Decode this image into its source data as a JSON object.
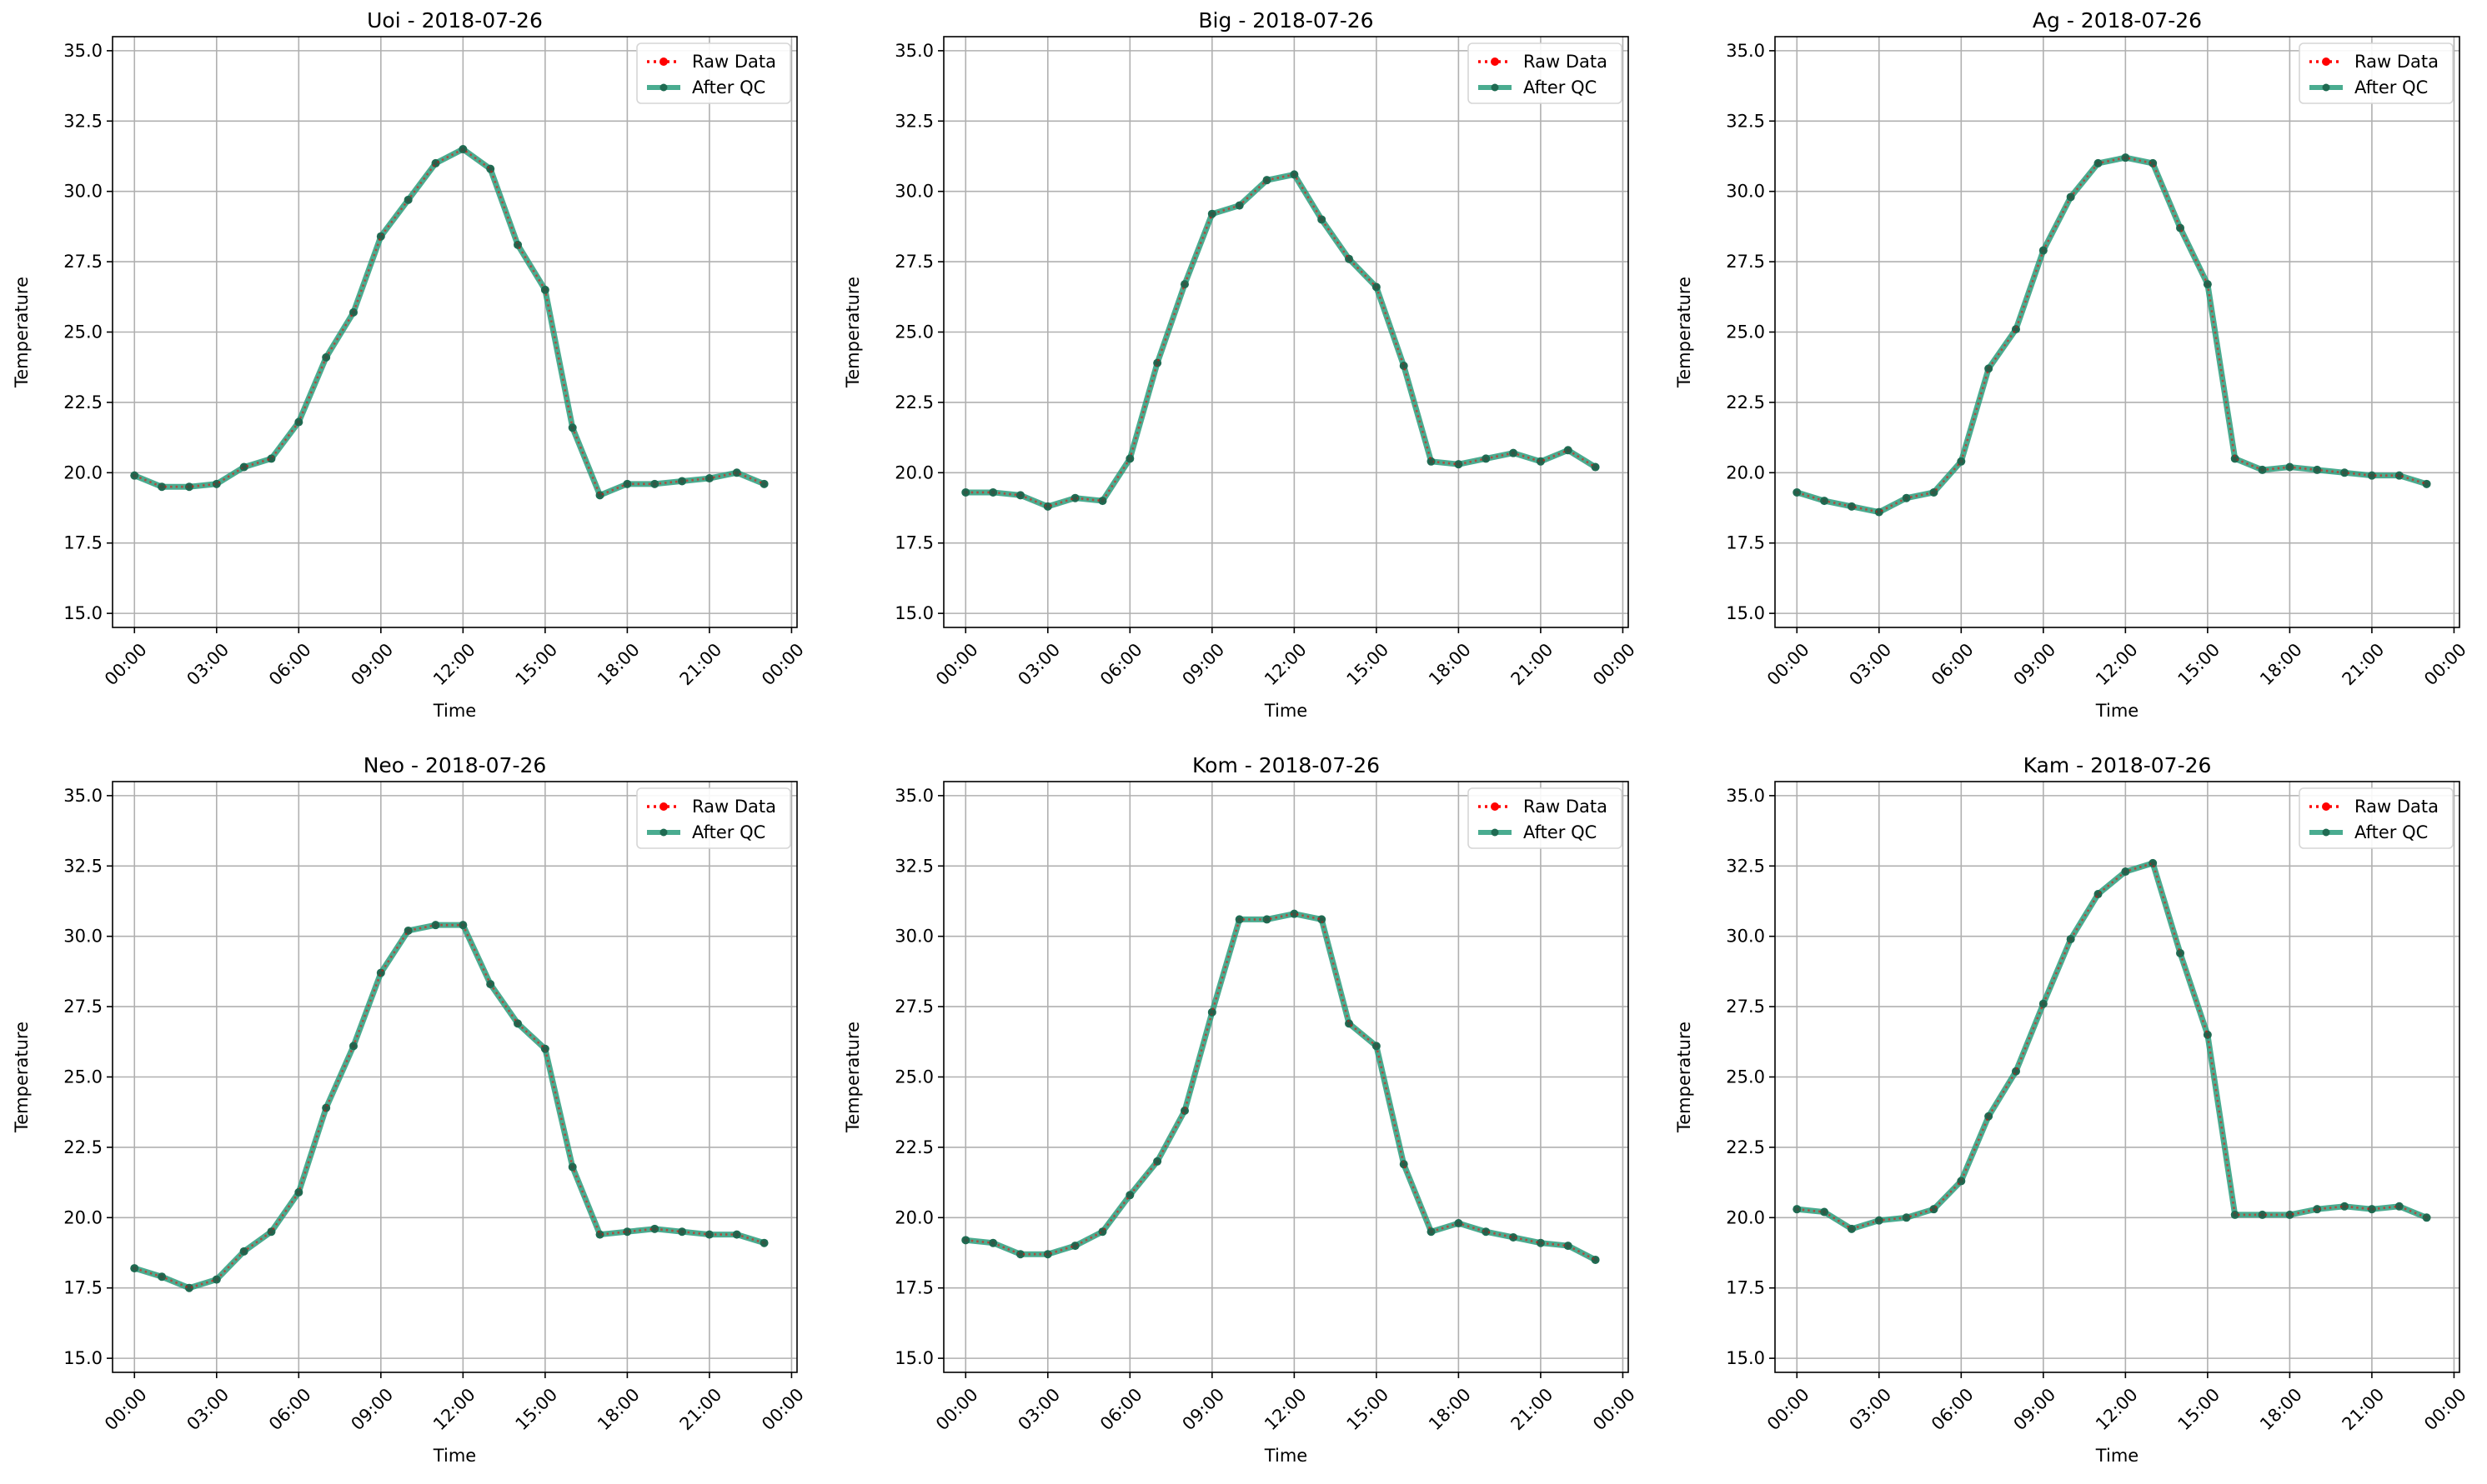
{
  "figure": {
    "common": {
      "xlabel": "Time",
      "ylabel": "Temperature",
      "ylim": [
        14.5,
        35.5
      ],
      "yticks": [
        "15.0",
        "17.5",
        "20.0",
        "22.5",
        "25.0",
        "27.5",
        "30.0",
        "32.5",
        "35.0"
      ],
      "xlim": [
        -0.8,
        24.2
      ],
      "xticks": [
        "00:00",
        "03:00",
        "06:00",
        "09:00",
        "12:00",
        "15:00",
        "18:00",
        "21:00",
        "00:00"
      ],
      "grid": true,
      "legend_position": "top-right",
      "legend": [
        {
          "label": "Raw Data",
          "color": "#ff0000",
          "style": "dotted-line-with-dot-markers"
        },
        {
          "label": "After QC",
          "color": "#2a9d7c",
          "style": "thick-solid-line-with-dot-markers"
        }
      ],
      "colors": {
        "raw": "#ff0000",
        "qc": "#2a9d7c",
        "marker": "#1f6b52"
      }
    }
  },
  "chart_data": [
    {
      "type": "line",
      "title": "Uoi - 2018-07-26",
      "x": [
        "00:00",
        "01:00",
        "02:00",
        "03:00",
        "04:00",
        "05:00",
        "06:00",
        "07:00",
        "08:00",
        "09:00",
        "10:00",
        "11:00",
        "12:00",
        "13:00",
        "14:00",
        "15:00",
        "16:00",
        "17:00",
        "18:00",
        "19:00",
        "20:00",
        "21:00",
        "22:00",
        "23:00"
      ],
      "series": [
        {
          "name": "Raw Data",
          "values": [
            19.9,
            19.5,
            19.5,
            19.6,
            20.2,
            20.5,
            21.8,
            24.1,
            25.7,
            28.4,
            29.7,
            31.0,
            31.5,
            30.8,
            28.1,
            26.5,
            21.6,
            19.2,
            19.6,
            19.6,
            19.7,
            19.8,
            20.0,
            19.6
          ]
        },
        {
          "name": "After QC",
          "values": [
            19.9,
            19.5,
            19.5,
            19.6,
            20.2,
            20.5,
            21.8,
            24.1,
            25.7,
            28.4,
            29.7,
            31.0,
            31.5,
            30.8,
            28.1,
            26.5,
            21.6,
            19.2,
            19.6,
            19.6,
            19.7,
            19.8,
            20.0,
            19.6
          ]
        }
      ]
    },
    {
      "type": "line",
      "title": "Big - 2018-07-26",
      "x": [
        "00:00",
        "01:00",
        "02:00",
        "03:00",
        "04:00",
        "05:00",
        "06:00",
        "07:00",
        "08:00",
        "09:00",
        "10:00",
        "11:00",
        "12:00",
        "13:00",
        "14:00",
        "15:00",
        "16:00",
        "17:00",
        "18:00",
        "19:00",
        "20:00",
        "21:00",
        "22:00",
        "23:00"
      ],
      "series": [
        {
          "name": "Raw Data",
          "values": [
            19.3,
            19.3,
            19.2,
            18.8,
            19.1,
            19.0,
            20.5,
            23.9,
            26.7,
            29.2,
            29.5,
            30.4,
            30.6,
            29.0,
            27.6,
            26.6,
            23.8,
            20.4,
            20.3,
            20.5,
            20.7,
            20.4,
            20.8,
            20.2
          ]
        },
        {
          "name": "After QC",
          "values": [
            19.3,
            19.3,
            19.2,
            18.8,
            19.1,
            19.0,
            20.5,
            23.9,
            26.7,
            29.2,
            29.5,
            30.4,
            30.6,
            29.0,
            27.6,
            26.6,
            23.8,
            20.4,
            20.3,
            20.5,
            20.7,
            20.4,
            20.8,
            20.2
          ]
        }
      ]
    },
    {
      "type": "line",
      "title": "Ag - 2018-07-26",
      "x": [
        "00:00",
        "01:00",
        "02:00",
        "03:00",
        "04:00",
        "05:00",
        "06:00",
        "07:00",
        "08:00",
        "09:00",
        "10:00",
        "11:00",
        "12:00",
        "13:00",
        "14:00",
        "15:00",
        "16:00",
        "17:00",
        "18:00",
        "19:00",
        "20:00",
        "21:00",
        "22:00",
        "23:00"
      ],
      "series": [
        {
          "name": "Raw Data",
          "values": [
            19.3,
            19.0,
            18.8,
            18.6,
            19.1,
            19.3,
            20.4,
            23.7,
            25.1,
            27.9,
            29.8,
            31.0,
            31.2,
            31.0,
            28.7,
            26.7,
            20.5,
            20.1,
            20.2,
            20.1,
            20.0,
            19.9,
            19.9,
            19.6
          ]
        },
        {
          "name": "After QC",
          "values": [
            19.3,
            19.0,
            18.8,
            18.6,
            19.1,
            19.3,
            20.4,
            23.7,
            25.1,
            27.9,
            29.8,
            31.0,
            31.2,
            31.0,
            28.7,
            26.7,
            20.5,
            20.1,
            20.2,
            20.1,
            20.0,
            19.9,
            19.9,
            19.6
          ]
        }
      ]
    },
    {
      "type": "line",
      "title": "Neo - 2018-07-26",
      "x": [
        "00:00",
        "01:00",
        "02:00",
        "03:00",
        "04:00",
        "05:00",
        "06:00",
        "07:00",
        "08:00",
        "09:00",
        "10:00",
        "11:00",
        "12:00",
        "13:00",
        "14:00",
        "15:00",
        "16:00",
        "17:00",
        "18:00",
        "19:00",
        "20:00",
        "21:00",
        "22:00",
        "23:00"
      ],
      "series": [
        {
          "name": "Raw Data",
          "values": [
            18.2,
            17.9,
            17.5,
            17.8,
            18.8,
            19.5,
            20.9,
            23.9,
            26.1,
            28.7,
            30.2,
            30.4,
            30.4,
            28.3,
            26.9,
            26.0,
            21.8,
            19.4,
            19.5,
            19.6,
            19.5,
            19.4,
            19.4,
            19.1
          ]
        },
        {
          "name": "After QC",
          "values": [
            18.2,
            17.9,
            17.5,
            17.8,
            18.8,
            19.5,
            20.9,
            23.9,
            26.1,
            28.7,
            30.2,
            30.4,
            30.4,
            28.3,
            26.9,
            26.0,
            21.8,
            19.4,
            19.5,
            19.6,
            19.5,
            19.4,
            19.4,
            19.1
          ]
        }
      ]
    },
    {
      "type": "line",
      "title": "Kom - 2018-07-26",
      "x": [
        "00:00",
        "01:00",
        "02:00",
        "03:00",
        "04:00",
        "05:00",
        "06:00",
        "07:00",
        "08:00",
        "09:00",
        "10:00",
        "11:00",
        "12:00",
        "13:00",
        "14:00",
        "15:00",
        "16:00",
        "17:00",
        "18:00",
        "19:00",
        "20:00",
        "21:00",
        "22:00",
        "23:00"
      ],
      "series": [
        {
          "name": "Raw Data",
          "values": [
            19.2,
            19.1,
            18.7,
            18.7,
            19.0,
            19.5,
            20.8,
            22.0,
            23.8,
            27.3,
            30.6,
            30.6,
            30.8,
            30.6,
            26.9,
            26.1,
            21.9,
            19.5,
            19.8,
            19.5,
            19.3,
            19.1,
            19.0,
            18.5
          ]
        },
        {
          "name": "After QC",
          "values": [
            19.2,
            19.1,
            18.7,
            18.7,
            19.0,
            19.5,
            20.8,
            22.0,
            23.8,
            27.3,
            30.6,
            30.6,
            30.8,
            30.6,
            26.9,
            26.1,
            21.9,
            19.5,
            19.8,
            19.5,
            19.3,
            19.1,
            19.0,
            18.5
          ]
        }
      ]
    },
    {
      "type": "line",
      "title": "Kam - 2018-07-26",
      "x": [
        "00:00",
        "01:00",
        "02:00",
        "03:00",
        "04:00",
        "05:00",
        "06:00",
        "07:00",
        "08:00",
        "09:00",
        "10:00",
        "11:00",
        "12:00",
        "13:00",
        "14:00",
        "15:00",
        "16:00",
        "17:00",
        "18:00",
        "19:00",
        "20:00",
        "21:00",
        "22:00",
        "23:00"
      ],
      "series": [
        {
          "name": "Raw Data",
          "values": [
            20.3,
            20.2,
            19.6,
            19.9,
            20.0,
            20.3,
            21.3,
            23.6,
            25.2,
            27.6,
            29.9,
            31.5,
            32.3,
            32.6,
            29.4,
            26.5,
            20.1,
            20.1,
            20.1,
            20.3,
            20.4,
            20.3,
            20.4,
            20.0
          ]
        },
        {
          "name": "After QC",
          "values": [
            20.3,
            20.2,
            19.6,
            19.9,
            20.0,
            20.3,
            21.3,
            23.6,
            25.2,
            27.6,
            29.9,
            31.5,
            32.3,
            32.6,
            29.4,
            26.5,
            20.1,
            20.1,
            20.1,
            20.3,
            20.4,
            20.3,
            20.4,
            20.0
          ]
        }
      ]
    }
  ]
}
